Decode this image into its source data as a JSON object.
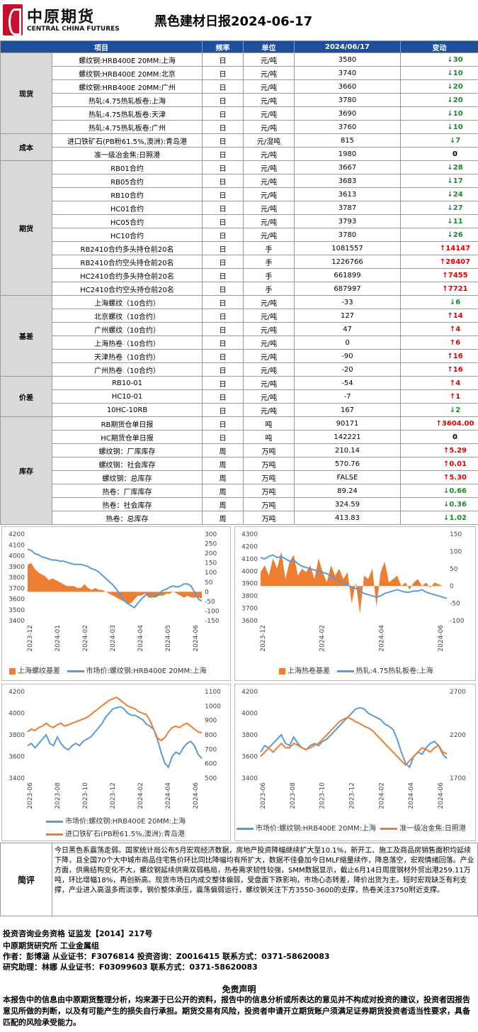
{
  "header": {
    "logo_cn": "中原期货",
    "logo_en": "CENTRAL CHINA FUTURES",
    "title": "黑色建材日报2024-06-17"
  },
  "table": {
    "headers": [
      "项目",
      "频率",
      "单位",
      "2024/06/17",
      "变动"
    ],
    "groups": [
      {
        "name": "现货",
        "rows": [
          {
            "item": "螺纹钢:HRB400E 20MM:上海",
            "freq": "日",
            "unit": "元/吨",
            "value": "3580",
            "dir": "down",
            "change": "30"
          },
          {
            "item": "螺纹钢:HRB400E 20MM:北京",
            "freq": "日",
            "unit": "元/吨",
            "value": "3740",
            "dir": "down",
            "change": "10"
          },
          {
            "item": "螺纹钢:HRB400E 20MM:广州",
            "freq": "日",
            "unit": "元/吨",
            "value": "3660",
            "dir": "down",
            "change": "20"
          },
          {
            "item": "热轧:4.75热轧板卷:上海",
            "freq": "日",
            "unit": "元/吨",
            "value": "3780",
            "dir": "down",
            "change": "20"
          },
          {
            "item": "热轧:4.75热轧板卷:天津",
            "freq": "日",
            "unit": "元/吨",
            "value": "3690",
            "dir": "down",
            "change": "10"
          },
          {
            "item": "热轧:4.75热轧板卷:广州",
            "freq": "日",
            "unit": "元/吨",
            "value": "3760",
            "dir": "down",
            "change": "10"
          }
        ]
      },
      {
        "name": "成本",
        "rows": [
          {
            "item": "进口铁矿石(PB粉61.5%,澳洲):青岛港",
            "freq": "日",
            "unit": "元/湿吨",
            "value": "815",
            "dir": "down",
            "change": "7"
          },
          {
            "item": "准一级冶金焦:日照港",
            "freq": "日",
            "unit": "元/吨",
            "value": "1980",
            "dir": "none",
            "change": "0"
          }
        ]
      },
      {
        "name": "期货",
        "rows": [
          {
            "item": "RB01合约",
            "freq": "日",
            "unit": "元/吨",
            "value": "3667",
            "dir": "down",
            "change": "28"
          },
          {
            "item": "RB05合约",
            "freq": "日",
            "unit": "元/吨",
            "value": "3683",
            "dir": "down",
            "change": "17"
          },
          {
            "item": "RB10合约",
            "freq": "日",
            "unit": "元/吨",
            "value": "3613",
            "dir": "down",
            "change": "24"
          },
          {
            "item": "HC01合约",
            "freq": "日",
            "unit": "元/吨",
            "value": "3787",
            "dir": "down",
            "change": "27"
          },
          {
            "item": "HC05合约",
            "freq": "日",
            "unit": "元/吨",
            "value": "3793",
            "dir": "down",
            "change": "11"
          },
          {
            "item": "HC10合约",
            "freq": "日",
            "unit": "元/吨",
            "value": "3780",
            "dir": "down",
            "change": "26"
          },
          {
            "item": "RB2410合约多头持仓前20名",
            "freq": "日",
            "unit": "手",
            "value": "1081557",
            "dir": "up",
            "change": "14147"
          },
          {
            "item": "RB2410合约空头持仓前20名",
            "freq": "日",
            "unit": "手",
            "value": "1226766",
            "dir": "up",
            "change": "28407"
          },
          {
            "item": "HC2410合约多头持仓前20名",
            "freq": "日",
            "unit": "手",
            "value": "661899",
            "dir": "up",
            "change": "7455"
          },
          {
            "item": "HC2410合约空头持仓前20名",
            "freq": "日",
            "unit": "手",
            "value": "687997",
            "dir": "up",
            "change": "7721"
          }
        ]
      },
      {
        "name": "基差",
        "rows": [
          {
            "item": "上海螺纹（10合约）",
            "freq": "日",
            "unit": "元/吨",
            "value": "-33",
            "dir": "down",
            "change": "6"
          },
          {
            "item": "北京螺纹（10合约）",
            "freq": "日",
            "unit": "元/吨",
            "value": "127",
            "dir": "up",
            "change": "14"
          },
          {
            "item": "广州螺纹（10合约）",
            "freq": "日",
            "unit": "元/吨",
            "value": "47",
            "dir": "up",
            "change": "4"
          },
          {
            "item": "上海热卷（10合约）",
            "freq": "日",
            "unit": "元/吨",
            "value": "0",
            "dir": "up",
            "change": "6"
          },
          {
            "item": "天津热卷（10合约）",
            "freq": "日",
            "unit": "元/吨",
            "value": "-90",
            "dir": "up",
            "change": "16"
          },
          {
            "item": "广州热卷（10合约）",
            "freq": "日",
            "unit": "元/吨",
            "value": "-20",
            "dir": "up",
            "change": "16"
          }
        ]
      },
      {
        "name": "价差",
        "rows": [
          {
            "item": "RB10-01",
            "freq": "日",
            "unit": "元/吨",
            "value": "-54",
            "dir": "up",
            "change": "4"
          },
          {
            "item": "HC10-01",
            "freq": "日",
            "unit": "元/吨",
            "value": "-7",
            "dir": "up",
            "change": "1"
          },
          {
            "item": "10HC-10RB",
            "freq": "日",
            "unit": "元/吨",
            "value": "167",
            "dir": "down",
            "change": "2"
          }
        ]
      },
      {
        "name": "库存",
        "rows": [
          {
            "item": "RB期货仓单日报",
            "freq": "日",
            "unit": "吨",
            "value": "90171",
            "dir": "up",
            "change": "3604.00"
          },
          {
            "item": "HC期货仓单日报",
            "freq": "日",
            "unit": "吨",
            "value": "142221",
            "dir": "none",
            "change": "0"
          },
          {
            "item": "螺纹钢：厂库库存",
            "freq": "周",
            "unit": "万吨",
            "value": "210.14",
            "dir": "up",
            "change": "5.29"
          },
          {
            "item": "螺纹钢：社会库存",
            "freq": "周",
            "unit": "万吨",
            "value": "570.76",
            "dir": "up",
            "change": "0.01"
          },
          {
            "item": "螺纹钢：总库存",
            "freq": "周",
            "unit": "万吨",
            "value": "FALSE",
            "dir": "up",
            "change": "5.30"
          },
          {
            "item": "热卷：厂库库存",
            "freq": "周",
            "unit": "万吨",
            "value": "89.24",
            "dir": "down",
            "change": "0.66"
          },
          {
            "item": "热卷：社会库存",
            "freq": "周",
            "unit": "万吨",
            "value": "324.59",
            "dir": "down",
            "change": "0.36"
          },
          {
            "item": "热卷：总库存",
            "freq": "周",
            "unit": "万吨",
            "value": "413.83",
            "dir": "down",
            "change": "1.02"
          }
        ]
      }
    ]
  },
  "colors": {
    "up": "#e00000",
    "down": "#1a8a2a",
    "header_bg": "#1f4e9c",
    "orange": "#ed7d31",
    "blue": "#5b9bd5"
  },
  "charts": [
    {
      "type": "area",
      "left_axis": {
        "ticks": [
          "4200",
          "4100",
          "4000",
          "3900",
          "3800",
          "3700",
          "3600",
          "3500",
          "3400"
        ],
        "range": [
          3400,
          4200
        ]
      },
      "right_axis": {
        "ticks": [
          "300",
          "250",
          "200",
          "150",
          "100",
          "50",
          "0",
          "-50",
          "-100",
          "-150"
        ],
        "range": [
          -150,
          300
        ]
      },
      "x_ticks": [
        "2023-12",
        "2024-01",
        "2024-02",
        "2024-03",
        "2024-04",
        "2024-05",
        "2024-06"
      ],
      "legend": [
        "上海螺纹基差",
        "市场价:螺纹钢:HRB400E 20MM:上海"
      ],
      "series": [
        {
          "name": "市场价:螺纹钢:HRB400E 20MM:上海",
          "axis": "left",
          "values": [
            4060,
            4050,
            4020,
            4010,
            3990,
            3980,
            3970,
            3960,
            3960,
            3950,
            3950,
            3940,
            3930,
            3920,
            3920,
            3920,
            3910,
            3900,
            3880,
            3870,
            3850,
            3820,
            3790,
            3760,
            3730,
            3690,
            3640,
            3590,
            3560,
            3540,
            3520,
            3560,
            3600,
            3630,
            3650,
            3640,
            3630,
            3650,
            3680,
            3690,
            3710,
            3720,
            3710,
            3720,
            3740,
            3740,
            3720,
            3660,
            3600,
            3580
          ]
        },
        {
          "name": "上海螺纹基差",
          "axis": "right",
          "values": [
            140,
            150,
            120,
            100,
            90,
            80,
            60,
            70,
            60,
            50,
            40,
            30,
            30,
            30,
            20,
            20,
            40,
            20,
            10,
            20,
            10,
            10,
            0,
            -10,
            -20,
            -30,
            -40,
            -50,
            -60,
            -60,
            -40,
            -20,
            -20,
            -10,
            -30,
            -30,
            -30,
            -20,
            -20,
            -10,
            -10,
            0,
            -10,
            -20,
            -30,
            -20,
            -30,
            -30,
            -30,
            -33
          ]
        }
      ]
    },
    {
      "type": "area",
      "left_axis": {
        "ticks": [
          "4300",
          "4200",
          "4100",
          "4000",
          "3900",
          "3800",
          "3700",
          "3600"
        ],
        "range": [
          3600,
          4300
        ]
      },
      "right_axis": {
        "ticks": [
          "150",
          "100",
          "50",
          "0",
          "-50",
          "-100"
        ],
        "range": [
          -100,
          150
        ]
      },
      "x_ticks": [
        "2023-12",
        "2024-02",
        "2024-04",
        "2024-06"
      ],
      "legend": [
        "上海热卷基差",
        "热轧:4.75热轧板卷:上海"
      ],
      "series": [
        {
          "name": "热轧:4.75热轧板卷:上海",
          "axis": "left",
          "values": [
            4110,
            4100,
            4120,
            4130,
            4110,
            4120,
            4100,
            4080,
            4090,
            4060,
            4040,
            4030,
            4020,
            4010,
            4000,
            3990,
            3980,
            3960,
            3940,
            3920,
            3900,
            3890,
            3870,
            3860,
            3840,
            3820,
            3810,
            3800,
            3790,
            3800,
            3820,
            3830,
            3840,
            3850,
            3840,
            3830,
            3830,
            3840,
            3840,
            3850,
            3830,
            3820,
            3810,
            3800,
            3790,
            3780
          ]
        },
        {
          "name": "上海热卷基差",
          "axis": "right",
          "values": [
            40,
            60,
            30,
            80,
            50,
            100,
            20,
            70,
            90,
            30,
            50,
            40,
            60,
            20,
            80,
            40,
            10,
            60,
            30,
            50,
            20,
            40,
            -50,
            10,
            -80,
            30,
            20,
            50,
            -60,
            40,
            70,
            10,
            20,
            30,
            0,
            10,
            -10,
            10,
            20,
            0,
            10,
            -5,
            10,
            5,
            0,
            0
          ]
        }
      ]
    },
    {
      "type": "line",
      "left_axis": {
        "ticks": [
          "4200",
          "4000",
          "3800",
          "3600",
          "3400"
        ],
        "range": [
          3400,
          4200
        ]
      },
      "right_axis": {
        "ticks": [
          "1100",
          "1000",
          "900",
          "800",
          "700",
          "600",
          "500"
        ],
        "range": [
          500,
          1100
        ]
      },
      "x_ticks": [
        "2023-06",
        "2023-08",
        "2023-10",
        "2023-12",
        "2024-02",
        "2024-04",
        "2024-06"
      ],
      "legend": [
        "市场价:螺纹钢:HRB400E 20MM:上海",
        "进口铁矿石(PB粉61.5%,澳洲):青岛港"
      ],
      "series": [
        {
          "name": "市场价:螺纹钢:HRB400E 20MM:上海",
          "axis": "left",
          "values": [
            3700,
            3720,
            3680,
            3720,
            3760,
            3800,
            3720,
            3700,
            3780,
            3720,
            3680,
            3660,
            3700,
            3720,
            3700,
            3740,
            3760,
            3780,
            3820,
            3860,
            3900,
            3960,
            4000,
            4040,
            4050,
            4060,
            4040,
            4000,
            3980,
            3980,
            3960,
            3940,
            3900,
            3880,
            3850,
            3760,
            3640,
            3540,
            3500,
            3600,
            3640,
            3620,
            3680,
            3720,
            3740,
            3700,
            3620,
            3580
          ]
        },
        {
          "name": "进口铁矿石(PB粉61.5%,澳洲):青岛港",
          "axis": "right",
          "values": [
            820,
            840,
            830,
            850,
            860,
            880,
            860,
            850,
            870,
            880,
            860,
            870,
            880,
            890,
            900,
            910,
            920,
            940,
            960,
            980,
            1000,
            1020,
            1040,
            1050,
            1060,
            1040,
            1020,
            1000,
            990,
            980,
            960,
            950,
            940,
            900,
            840,
            780,
            760,
            780,
            820,
            850,
            860,
            850,
            870,
            880,
            860,
            840,
            820,
            815
          ]
        }
      ]
    },
    {
      "type": "line",
      "left_axis": {
        "ticks": [
          "4200",
          "4000",
          "3800",
          "3600",
          "3400"
        ],
        "range": [
          3400,
          4200
        ]
      },
      "right_axis": {
        "ticks": [
          "2700",
          "2200",
          "1700"
        ],
        "range": [
          1700,
          2700
        ]
      },
      "x_ticks": [
        "2023-06",
        "2023-08",
        "2023-10",
        "2023-12",
        "2024-02",
        "2024-04",
        "2024-06"
      ],
      "legend": [
        "市场价:螺纹钢:HRB400E 20MM:上海",
        "准一级冶金焦:日照港"
      ],
      "series": [
        {
          "name": "市场价:螺纹钢:HRB400E 20MM:上海",
          "axis": "left",
          "values": [
            3640,
            3700,
            3680,
            3720,
            3760,
            3800,
            3720,
            3700,
            3780,
            3720,
            3680,
            3660,
            3700,
            3720,
            3700,
            3740,
            3760,
            3800,
            3840,
            3880,
            3920,
            3960,
            4000,
            4040,
            4050,
            4040,
            4000,
            3980,
            3960,
            3940,
            3900,
            3880,
            3850,
            3760,
            3640,
            3540,
            3500,
            3600,
            3640,
            3620,
            3680,
            3720,
            3740,
            3700,
            3620,
            3580
          ]
        },
        {
          "name": "准一级冶金焦:日照港",
          "axis": "right",
          "values": [
            1950,
            2000,
            2050,
            2000,
            2050,
            2100,
            2050,
            2050,
            2100,
            2080,
            2050,
            2030,
            2050,
            2080,
            2100,
            2150,
            2200,
            2250,
            2300,
            2350,
            2380,
            2400,
            2380,
            2350,
            2330,
            2300,
            2280,
            2250,
            2200,
            2150,
            2100,
            2050,
            2000,
            1950,
            1900,
            1850,
            1900,
            1950,
            2000,
            2050,
            2030,
            2000,
            2050,
            2080,
            2000,
            1980
          ]
        }
      ]
    }
  ],
  "comment": {
    "label": "简评",
    "text": "今日黑色系震荡走弱。国家统计局公布5月宏观经济数据，房地产投资降幅继续扩大至10.1%，新开工、施工及商品房销售面积均延续下降，且全国70个大中城市商品住宅售价环比同比降幅均有所扩大，数据不佳叠加今日MLF缩量续作，降息落空，宏观情绪回落。产业方面，供需结构变化不大，螺纹钢延续供需双弱格局，热卷需求韧性较强，SMM数据显示，截止6月14日周度钢材外贸出港259.11万吨，环比增幅18%，再创新高。现货市场日内成交整体偏弱，受盘面下跌影响，市场心态转差，降价出货为主。短时宏观缺乏有利支撑，产业进入高温多雨淡季，钢价整体承压，震荡偏弱运行，螺纹钢关注下方3550-3600的支撑，热卷关注3750附近支撑。"
  },
  "info": {
    "line1": "投资咨询业务资格   证监发【2014】217号",
    "line2": "中原期货研究所   工业金属组",
    "line3": "作者：彭博涵      从业证书：F3076814      投资咨询：Z0016415           联系方式：0371-58620083",
    "line4": "研究助理：林娜      从业证书：F03099603      联系方式：0371-58620083"
  },
  "disclaimer": {
    "title": "免责声明",
    "text": "本报告中的信息由中原期货整理分析，均来源于已公开的资料，报告中的信息分析或所表达的意见并不构成对投资的建议，投资者因报告意见所做的判断，以及有可能产生的损失自行承担。期货交易有风险，投资者申请开立期货账户须满足证券期货投资者适当性要求，具备匹配的风险承受能力。"
  }
}
